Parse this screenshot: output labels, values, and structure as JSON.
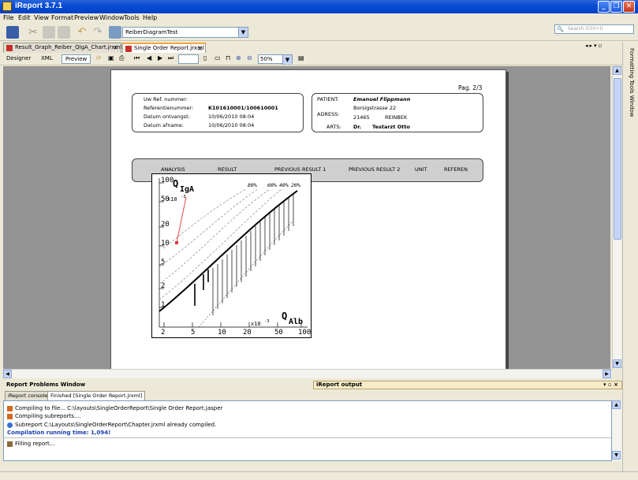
{
  "window": {
    "title": "iReport 3.7.1"
  },
  "menu": [
    "File",
    "Edit",
    "View",
    "Format",
    "Preview",
    "Window",
    "Tools",
    "Help"
  ],
  "toolbar": {
    "combo_value": "ReiberDiagramTest",
    "search_placeholder": "Search (Ctrl+I)"
  },
  "tabs": [
    {
      "label": "Result_Graph_Reiber_QIgA_Chart.jrxml"
    },
    {
      "label": "Single Order Report.jrxml"
    }
  ],
  "designer": {
    "modes": [
      "Designer",
      "XML",
      "Preview"
    ],
    "zoom": "50%"
  },
  "right_panel": {
    "label": "Formatting Tools Window"
  },
  "report": {
    "page": "Pag. 2/3",
    "left_fields": [
      {
        "label": "Uw Ref. nummer:",
        "value": ""
      },
      {
        "label": "Referentienummer:",
        "value": "K101610001/100610001"
      },
      {
        "label": "Datum ontvangst:",
        "value": "10/06/2010 08:04"
      },
      {
        "label": "Datum afname:",
        "value": "10/06/2010 08:04"
      }
    ],
    "patient_label": "PATIENT:",
    "patient_name": "Emanuel Flippmann",
    "address_label": "ADRESS:",
    "address_street": "Borsigstrasse 22",
    "address_zip": "21465",
    "address_city": "REINBEK",
    "arts_label": "ARTS:",
    "arts_title": "Dr.",
    "arts_name": "Testarzt Otto",
    "columns": [
      "ANALYSIS",
      "RESULT",
      "PREVIOUS RESULT 1",
      "PREVIOUS RESULT 2",
      "UNIT",
      "REFEREN"
    ]
  },
  "chart": {
    "y_ticks": [
      "100",
      "50",
      "20",
      "10",
      "5",
      "2",
      "1"
    ],
    "x_ticks": [
      "2",
      "5",
      "10",
      "20",
      "50",
      "100"
    ],
    "percent_labels": [
      "80%",
      "60%",
      "40%",
      "20%"
    ],
    "y_title_main": "Q",
    "y_title_sub": "IgA",
    "y_exp": "x10",
    "y_exp_power": "-3",
    "x_title_main": "Q",
    "x_title_sub": "Alb",
    "x_exp": "x10",
    "x_exp_power": "-3"
  },
  "bottom": {
    "problems_title": "Report Problems Window",
    "output_title": "iReport output",
    "console_tabs": [
      "iReport console",
      "Finished [Single Order Report.jrxml]"
    ],
    "log": [
      "Compiling to file... C:\\layouts\\SingleOrderReport\\Single Order Report.jasper",
      "Compiling subreports....",
      "Subreport C:\\Layouts\\SingleOrderReport\\Chapter.jrxml already compiled.",
      "Compilation running time: 1,094!",
      "Filling report..."
    ]
  }
}
